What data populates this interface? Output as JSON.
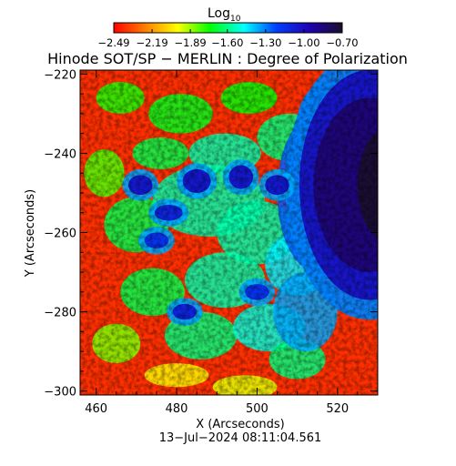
{
  "chart_data": {
    "type": "heatmap",
    "title": "Hinode SOT/SP − MERLIN : Degree of Polarization",
    "xlabel": "X (Arcseconds)",
    "ylabel": "Y (Arcseconds)",
    "timestamp": "13−Jul−2024 08:11:04.561",
    "xlim": [
      456,
      530
    ],
    "ylim": [
      -301,
      -219
    ],
    "x_ticks": [
      460,
      480,
      500,
      520
    ],
    "y_ticks": [
      -220,
      -240,
      -260,
      -280,
      -300
    ],
    "x_tick_labels": [
      "460",
      "480",
      "500",
      "520"
    ],
    "y_tick_labels": [
      "−220",
      "−240",
      "−260",
      "−280",
      "−300"
    ],
    "colorbar": {
      "label_main": "Log",
      "label_sub": "10",
      "range": [
        -2.49,
        -0.7
      ],
      "ticks": [
        -2.49,
        -2.19,
        -1.89,
        -1.6,
        -1.3,
        -1.0,
        -0.7
      ],
      "tick_labels": [
        "−2.49",
        "−2.19",
        "−1.89",
        "−1.60",
        "−1.30",
        "−1.00",
        "−0.70"
      ],
      "colors": [
        "#ff0000",
        "#ff8000",
        "#ffff00",
        "#00ff00",
        "#00ffff",
        "#0040ff",
        "#2000b0",
        "#1a0f2a"
      ]
    },
    "features": [
      {
        "type": "dark-lobe",
        "x": 528,
        "y": -248,
        "rx": 16,
        "ry": 24,
        "value": -0.8
      },
      {
        "type": "blob",
        "x": 485,
        "y": -247,
        "rx": 3.5,
        "ry": 3,
        "value": -1.05
      },
      {
        "type": "blob",
        "x": 471,
        "y": -248,
        "rx": 3,
        "ry": 2.5,
        "value": -1.05
      },
      {
        "type": "blob",
        "x": 496,
        "y": -246,
        "rx": 3,
        "ry": 3,
        "value": -1.05
      },
      {
        "type": "blob",
        "x": 505,
        "y": -248,
        "rx": 3,
        "ry": 2.5,
        "value": -1.05
      },
      {
        "type": "blob",
        "x": 478,
        "y": -255,
        "rx": 3.5,
        "ry": 2,
        "value": -1.1
      },
      {
        "type": "blob",
        "x": 475,
        "y": -262,
        "rx": 3,
        "ry": 2,
        "value": -1.15
      },
      {
        "type": "blob",
        "x": 482,
        "y": -280,
        "rx": 3,
        "ry": 2,
        "value": -1.1
      },
      {
        "type": "blob",
        "x": 500,
        "y": -275,
        "rx": 3,
        "ry": 2,
        "value": -1.15
      }
    ]
  }
}
